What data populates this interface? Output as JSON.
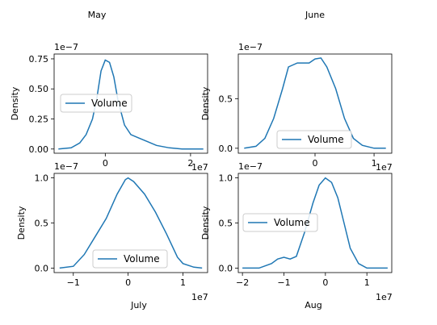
{
  "chart_data": [
    {
      "type": "line",
      "title": "May",
      "xlabel": "",
      "ylabel": "Density",
      "x_multiplier": "1e7",
      "y_multiplier": "1e−7",
      "x_ticks": [
        0,
        2
      ],
      "y_ticks": [
        0.0,
        0.25,
        0.5,
        0.75
      ],
      "y_tick_labels": [
        "0.00",
        "0.25",
        "0.50",
        "0.75"
      ],
      "xlim": [
        -1.2,
        2.4
      ],
      "ylim": [
        -0.035,
        0.79
      ],
      "legend": "center-left",
      "series": [
        {
          "name": "Volume",
          "color": "#1f77b4",
          "x": [
            -1.1,
            -0.8,
            -0.6,
            -0.45,
            -0.3,
            -0.2,
            -0.1,
            0.0,
            0.1,
            0.2,
            0.3,
            0.45,
            0.6,
            0.8,
            1.0,
            1.2,
            1.5,
            1.8,
            2.1,
            2.3
          ],
          "y": [
            0.0,
            0.01,
            0.05,
            0.12,
            0.25,
            0.42,
            0.65,
            0.74,
            0.72,
            0.6,
            0.4,
            0.2,
            0.12,
            0.09,
            0.06,
            0.03,
            0.01,
            0.0,
            0.0,
            0.0
          ]
        }
      ]
    },
    {
      "type": "line",
      "title": "June",
      "xlabel": "",
      "ylabel": "Density",
      "x_multiplier": "1e7",
      "y_multiplier": "1e−7",
      "x_ticks": [
        0,
        1
      ],
      "y_ticks": [
        0.0,
        0.5
      ],
      "y_tick_labels": [
        "0.0",
        "0.5"
      ],
      "xlim": [
        -1.3,
        1.3
      ],
      "ylim": [
        -0.05,
        0.95
      ],
      "legend": "lower-center",
      "series": [
        {
          "name": "Volume",
          "color": "#1f77b4",
          "x": [
            -1.2,
            -1.0,
            -0.85,
            -0.7,
            -0.55,
            -0.45,
            -0.3,
            -0.1,
            0.0,
            0.1,
            0.2,
            0.35,
            0.5,
            0.65,
            0.8,
            1.0,
            1.2
          ],
          "y": [
            0.0,
            0.02,
            0.1,
            0.3,
            0.6,
            0.82,
            0.86,
            0.86,
            0.9,
            0.91,
            0.82,
            0.6,
            0.3,
            0.1,
            0.03,
            0.0,
            0.0
          ]
        }
      ]
    },
    {
      "type": "line",
      "title": "",
      "xlabel": "July",
      "ylabel": "Density",
      "x_multiplier": "1e7",
      "y_multiplier": "1e−7",
      "x_ticks": [
        -1,
        0,
        1
      ],
      "y_ticks": [
        0.0,
        0.5,
        1.0
      ],
      "y_tick_labels": [
        "0.0",
        "0.5",
        "1.0"
      ],
      "xlim": [
        -1.35,
        1.45
      ],
      "ylim": [
        -0.05,
        1.05
      ],
      "legend": "lower-center",
      "series": [
        {
          "name": "Volume",
          "color": "#1f77b4",
          "x": [
            -1.25,
            -1.0,
            -0.8,
            -0.6,
            -0.4,
            -0.2,
            -0.05,
            0.0,
            0.1,
            0.3,
            0.5,
            0.7,
            0.9,
            1.0,
            1.2,
            1.35
          ],
          "y": [
            0.0,
            0.02,
            0.15,
            0.35,
            0.55,
            0.82,
            0.98,
            1.0,
            0.96,
            0.82,
            0.62,
            0.38,
            0.12,
            0.05,
            0.01,
            0.0
          ]
        }
      ]
    },
    {
      "type": "line",
      "title": "",
      "xlabel": "Aug",
      "ylabel": "Density",
      "x_multiplier": "1e7",
      "y_multiplier": "1e−7",
      "x_ticks": [
        -2,
        -1,
        0,
        1
      ],
      "y_ticks": [
        0.0,
        0.5,
        1.0
      ],
      "y_tick_labels": [
        "0.0",
        "0.5",
        "1.0"
      ],
      "xlim": [
        -2.1,
        1.6
      ],
      "ylim": [
        -0.05,
        1.05
      ],
      "legend": "center-left",
      "series": [
        {
          "name": "Volume",
          "color": "#1f77b4",
          "x": [
            -2.0,
            -1.6,
            -1.3,
            -1.15,
            -1.0,
            -0.85,
            -0.7,
            -0.5,
            -0.3,
            -0.15,
            0.0,
            0.15,
            0.3,
            0.45,
            0.6,
            0.8,
            1.0,
            1.2,
            1.5
          ],
          "y": [
            0.0,
            0.0,
            0.05,
            0.1,
            0.12,
            0.1,
            0.13,
            0.4,
            0.72,
            0.92,
            1.0,
            0.95,
            0.78,
            0.5,
            0.22,
            0.05,
            0.0,
            0.0,
            0.0
          ]
        }
      ]
    }
  ]
}
